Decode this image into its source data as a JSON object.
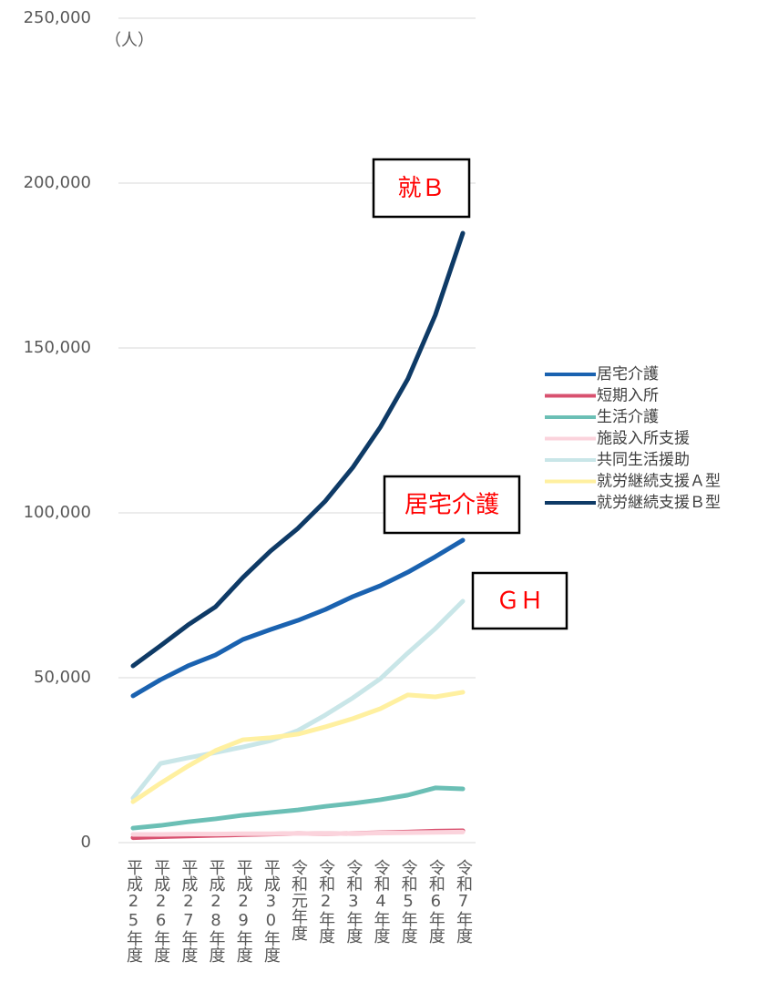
{
  "chart_data": {
    "type": "line",
    "unit_label": "（人）",
    "categories": [
      "平成25年度",
      "平成26年度",
      "平成27年度",
      "平成28年度",
      "平成29年度",
      "平成30年度",
      "令和元年度",
      "令和2年度",
      "令和3年度",
      "令和4年度",
      "令和5年度",
      "令和6年度",
      "令和7年度"
    ],
    "series": [
      {
        "name": "居宅介護",
        "color": "#1a62b0",
        "values": [
          44500,
          49400,
          53600,
          56900,
          61600,
          64600,
          67400,
          70700,
          74600,
          77900,
          82000,
          86700,
          91700
        ]
      },
      {
        "name": "短期入所",
        "color": "#d8516f",
        "values": [
          1500,
          1800,
          2000,
          2200,
          2400,
          2600,
          2800,
          2700,
          2800,
          3000,
          3200,
          3500,
          3600
        ]
      },
      {
        "name": "生活介護",
        "color": "#6bbfb5",
        "values": [
          4400,
          5200,
          6300,
          7200,
          8300,
          9100,
          9900,
          11000,
          11900,
          13000,
          14400,
          16600,
          16300
        ]
      },
      {
        "name": "施設入所支援",
        "color": "#fbd3dc",
        "values": [
          2500,
          2500,
          2600,
          2600,
          2700,
          2700,
          2800,
          2700,
          2800,
          2900,
          3000,
          3100,
          3200
        ]
      },
      {
        "name": "共同生活援助",
        "color": "#c9e6e8",
        "values": [
          13500,
          24000,
          25700,
          27300,
          29000,
          30900,
          34000,
          38700,
          43900,
          49700,
          57500,
          64900,
          73200
        ]
      },
      {
        "name": "就労継続支援Ａ型",
        "color": "#fff0a0",
        "values": [
          12400,
          18000,
          23200,
          27900,
          31200,
          31800,
          32900,
          35100,
          37600,
          40600,
          44800,
          44200,
          45600
        ]
      },
      {
        "name": "就労継続支援Ｂ型",
        "color": "#0e3a66",
        "values": [
          53600,
          59700,
          66000,
          71500,
          80400,
          88400,
          95300,
          103600,
          113800,
          126000,
          140600,
          160000,
          184800
        ]
      }
    ],
    "ylim": [
      0,
      250000
    ],
    "yticks": [
      0,
      {
        "value": 50000,
        "label": "50,000"
      },
      {
        "value": 100000,
        "label": "100,000"
      },
      {
        "value": 150000,
        "label": "150,000"
      },
      {
        "value": 200000,
        "label": "200,000"
      },
      {
        "value": 250000,
        "label": "250,000"
      }
    ],
    "grid": true,
    "legend": "right",
    "annotations": [
      {
        "text": "就Ｂ"
      },
      {
        "text": "居宅介護"
      },
      {
        "text": "ＧＨ"
      }
    ]
  }
}
